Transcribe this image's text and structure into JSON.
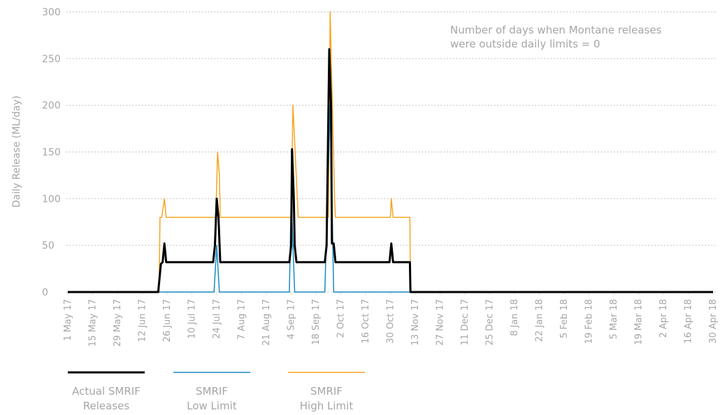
{
  "chart_data": {
    "type": "line",
    "ylabel": "Daily Release (ML/day)",
    "annotation": [
      "Number of days when Montane releases",
      "were outside daily limits = 0"
    ],
    "xlim": [
      0,
      364
    ],
    "ylim": [
      0,
      300
    ],
    "yticks": [
      0,
      50,
      100,
      150,
      200,
      250,
      300
    ],
    "xticks": [
      {
        "value": 0,
        "label": "1 May 17"
      },
      {
        "value": 14,
        "label": "15 May 17"
      },
      {
        "value": 28,
        "label": "29 May 17"
      },
      {
        "value": 42,
        "label": "12 Jun 17"
      },
      {
        "value": 56,
        "label": "26 Jun 17"
      },
      {
        "value": 70,
        "label": "10 Jul 17"
      },
      {
        "value": 84,
        "label": "24 Jul 17"
      },
      {
        "value": 98,
        "label": "7 Aug 17"
      },
      {
        "value": 112,
        "label": "21 Aug 17"
      },
      {
        "value": 126,
        "label": "4 Sep 17"
      },
      {
        "value": 140,
        "label": "18 Sep 17"
      },
      {
        "value": 154,
        "label": "2 Oct 17"
      },
      {
        "value": 168,
        "label": "16 Oct 17"
      },
      {
        "value": 182,
        "label": "30 Oct 17"
      },
      {
        "value": 196,
        "label": "13 Nov 17"
      },
      {
        "value": 210,
        "label": "27 Nov 17"
      },
      {
        "value": 224,
        "label": "11 Dec 17"
      },
      {
        "value": 238,
        "label": "25 Dec 17"
      },
      {
        "value": 252,
        "label": "8 Jan 18"
      },
      {
        "value": 266,
        "label": "22 Jan 18"
      },
      {
        "value": 280,
        "label": "5 Feb 18"
      },
      {
        "value": 294,
        "label": "19 Feb 18"
      },
      {
        "value": 308,
        "label": "5 Mar 18"
      },
      {
        "value": 322,
        "label": "19 Mar 18"
      },
      {
        "value": 336,
        "label": "2 Apr 18"
      },
      {
        "value": 350,
        "label": "16 Apr 18"
      },
      {
        "value": 364,
        "label": "30 Apr 18"
      }
    ],
    "grid": true,
    "series": [
      {
        "name": "SMRIF\nHigh Limit",
        "color": "#f5a623",
        "width": 1.5,
        "x": [
          0,
          51.5,
          52,
          53,
          54.5,
          55.5,
          83.5,
          84.5,
          85.5,
          86,
          126,
          127,
          130,
          147,
          148,
          150.5,
          151,
          182,
          182.5,
          183.5,
          193,
          193.3,
          364
        ],
        "values": [
          0,
          0,
          80,
          80,
          100,
          80,
          80,
          150,
          125,
          80,
          80,
          200,
          80,
          80,
          300,
          100,
          80,
          80,
          100,
          80,
          80,
          0,
          0
        ]
      },
      {
        "name": "SMRIF\nLow Limit",
        "color": "#1a8ac4",
        "width": 1.5,
        "x": [
          0,
          82.5,
          84,
          85.5,
          125,
          126,
          128,
          145,
          148,
          150,
          364
        ],
        "values": [
          0,
          0,
          50,
          0,
          0,
          100,
          0,
          0,
          200,
          0,
          0
        ]
      },
      {
        "name": "Actual SMRIF\nReleases",
        "color": "#000000",
        "width": 3,
        "x": [
          0,
          51,
          52.5,
          53.5,
          54.5,
          55.5,
          82,
          83,
          84,
          85,
          86,
          125,
          126,
          126.5,
          127.5,
          128,
          129,
          145,
          146,
          147.5,
          148.5,
          149,
          150,
          151,
          181.5,
          182.5,
          183.5,
          193,
          193.3,
          364
        ],
        "values": [
          0,
          0,
          30,
          32,
          52,
          32,
          32,
          50,
          100,
          80,
          32,
          32,
          50,
          153,
          100,
          50,
          32,
          32,
          50,
          260,
          200,
          52,
          52,
          32,
          32,
          52,
          32,
          32,
          0,
          0
        ]
      }
    ],
    "legend_order": [
      2,
      1,
      0
    ]
  }
}
